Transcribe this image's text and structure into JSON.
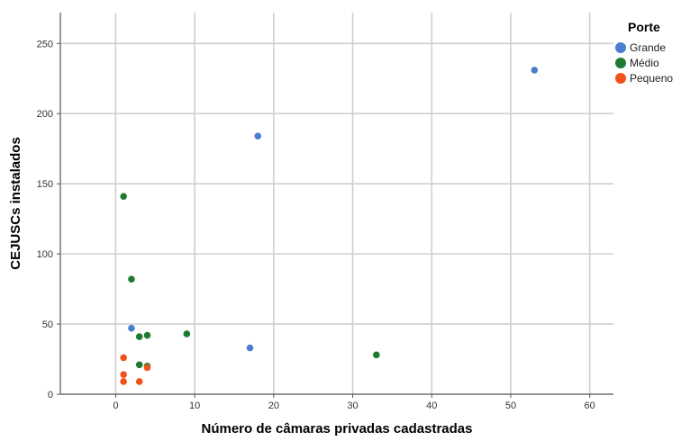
{
  "chart_data": {
    "type": "scatter",
    "xlabel": "Número de câmaras privadas cadastradas",
    "ylabel": "CEJUSCs instalados",
    "xlim": [
      -7,
      63
    ],
    "ylim": [
      0,
      272
    ],
    "xticks": [
      0,
      10,
      20,
      30,
      40,
      50,
      60
    ],
    "yticks": [
      0,
      50,
      100,
      150,
      200,
      250
    ],
    "grid": true,
    "legend": {
      "title": "Porte",
      "position": "right"
    },
    "series": [
      {
        "name": "Grande",
        "color": "#4a7fcf",
        "points": [
          [
            53,
            231
          ],
          [
            18,
            184
          ],
          [
            2,
            47
          ],
          [
            17,
            33
          ]
        ]
      },
      {
        "name": "Médio",
        "color": "#1e7a32",
        "points": [
          [
            1,
            141
          ],
          [
            2,
            82
          ],
          [
            9,
            43
          ],
          [
            3,
            41
          ],
          [
            4,
            42
          ],
          [
            33,
            28
          ],
          [
            3,
            21
          ],
          [
            4,
            20
          ]
        ]
      },
      {
        "name": "Pequeno",
        "color": "#f0521c",
        "points": [
          [
            1,
            26
          ],
          [
            1,
            14
          ],
          [
            1,
            9
          ],
          [
            3,
            9
          ],
          [
            4,
            19
          ]
        ]
      }
    ]
  }
}
